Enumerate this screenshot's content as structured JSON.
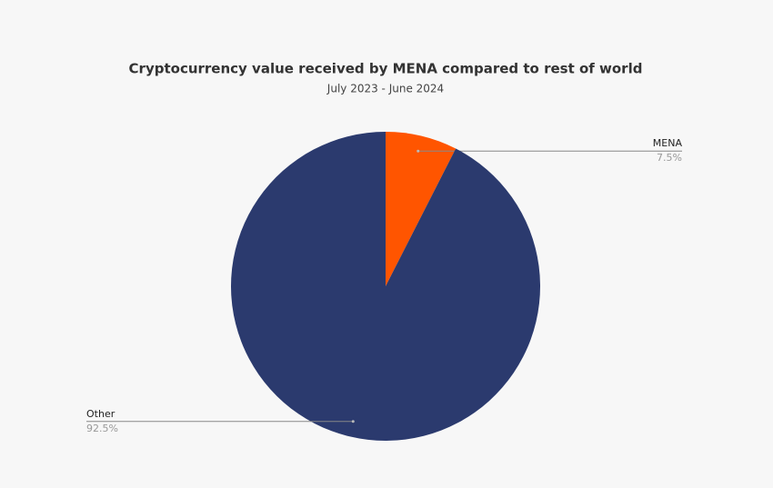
{
  "chart_data": {
    "type": "pie",
    "title": "Cryptocurrency value received by MENA compared to rest of world",
    "subtitle": "July 2023 - June 2024",
    "categories": [
      "MENA",
      "Other"
    ],
    "values": [
      7.5,
      92.5
    ],
    "value_labels": [
      "7.5%",
      "92.5%"
    ],
    "colors": [
      "#ff5500",
      "#2b3a6e"
    ]
  }
}
